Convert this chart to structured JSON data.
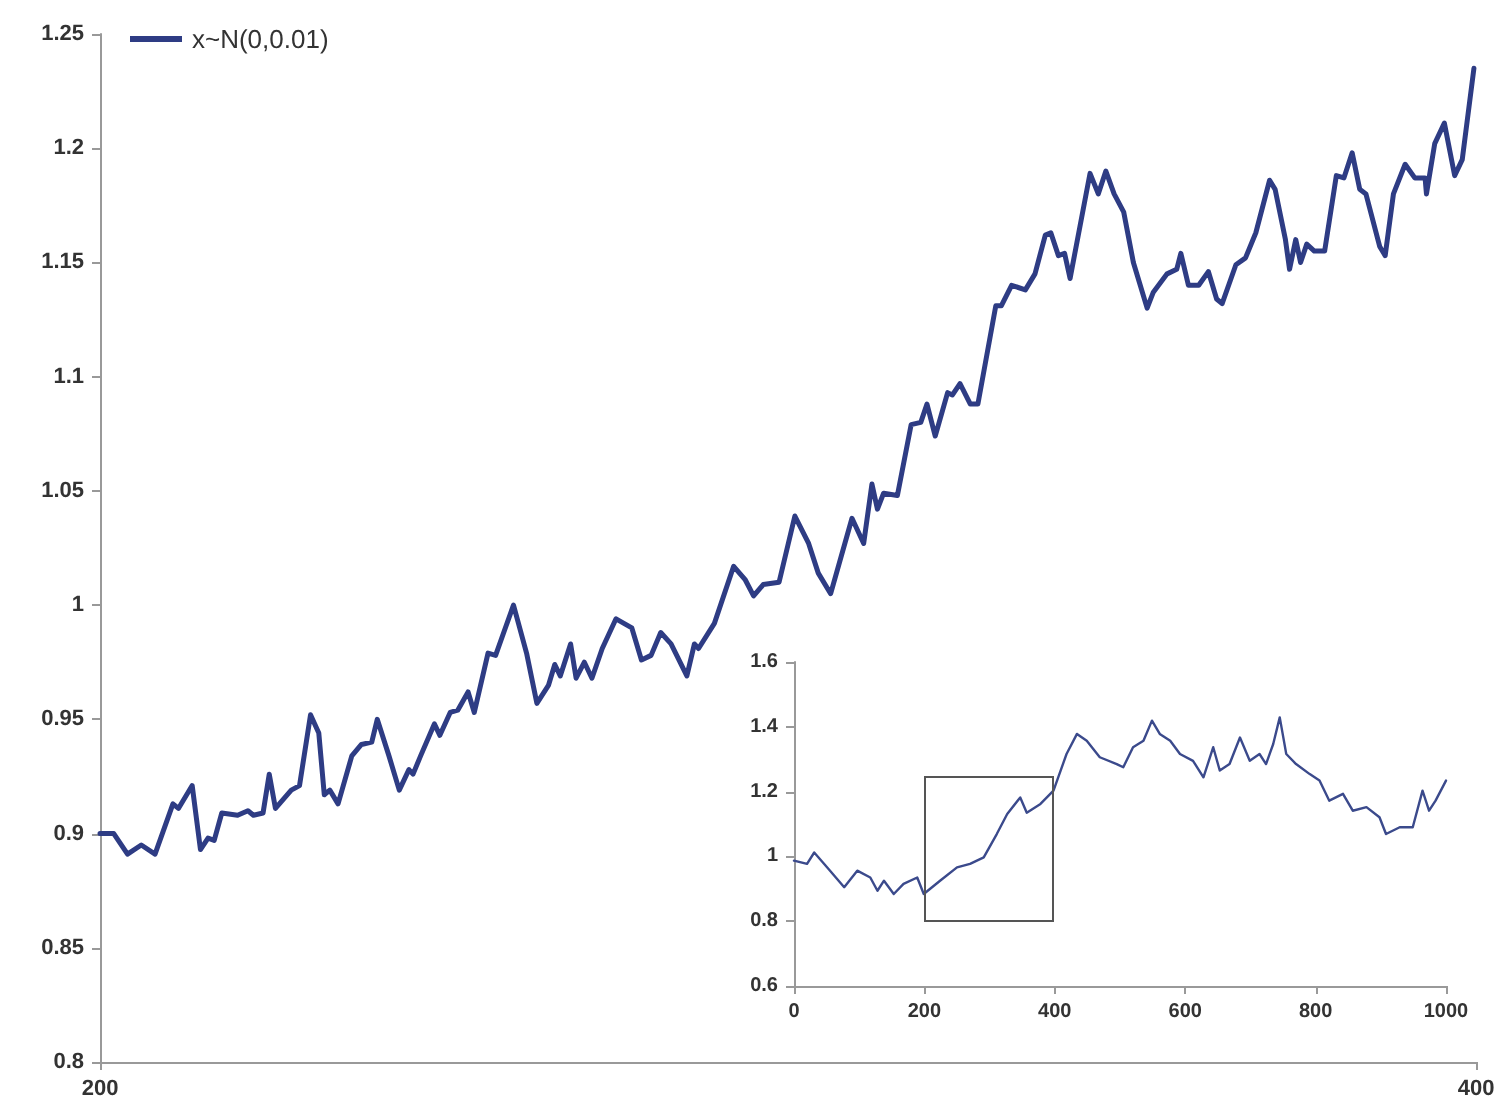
{
  "chart_data": [
    {
      "type": "line",
      "legend": "top left",
      "xlim": [
        200,
        400
      ],
      "xticks": [
        200,
        400
      ],
      "ylim": [
        0.8,
        1.25
      ],
      "yticks": [
        0.8,
        0.85,
        0.9,
        0.95,
        1,
        1.05,
        1.1,
        1.15,
        1.2,
        1.25
      ],
      "series": [
        {
          "name": "x~N(0,0.01)",
          "color": "#2e3c84",
          "x": [
            200,
            202,
            204,
            206,
            208,
            210.6,
            211.4,
            213.4,
            214.6,
            215.7,
            216.6,
            217.7,
            220,
            221.5,
            222.3,
            223.7,
            224.6,
            225.5,
            227.8,
            229,
            230.6,
            231.8,
            232.6,
            233.4,
            234.6,
            236.6,
            238,
            239.5,
            240.3,
            242,
            243.5,
            244.9,
            245.5,
            246.6,
            248.6,
            249.4,
            250.9,
            252,
            253.5,
            254.4,
            256.4,
            257.5,
            260.1,
            262,
            263.5,
            265.2,
            266.1,
            266.9,
            268.4,
            269.2,
            270.4,
            271.5,
            273,
            275,
            277.3,
            278.7,
            280.1,
            281.5,
            283,
            285.3,
            286.4,
            287,
            289.3,
            292.1,
            293.8,
            295,
            296.4,
            298.7,
            301,
            303,
            304.4,
            306.2,
            309.3,
            311,
            312.2,
            313,
            313.9,
            315.9,
            317.9,
            319.3,
            320.2,
            321.4,
            323.2,
            323.9,
            325,
            326.5,
            327.6,
            330.2,
            331,
            332.5,
            334.5,
            335.9,
            337.4,
            338.2,
            339.3,
            340.2,
            341,
            343.9,
            345.1,
            346.2,
            347.4,
            348.8,
            350.2,
            351.1,
            352.2,
            353.1,
            355.1,
            356.5,
            357.1,
            358.2,
            359.7,
            361.1,
            362.3,
            363.1,
            365.1,
            366.5,
            368,
            370,
            370.8,
            372.3,
            372.9,
            373.8,
            374.5,
            375.4,
            376.5,
            378,
            379.7,
            380.8,
            382,
            383.1,
            384,
            386,
            386.8,
            388,
            389.7,
            391.1,
            392.6,
            392.8,
            394,
            395.4,
            396.9,
            398,
            399.7
          ],
          "values": [
            0.9,
            0.9,
            0.891,
            0.895,
            0.891,
            0.913,
            0.911,
            0.921,
            0.893,
            0.898,
            0.897,
            0.909,
            0.908,
            0.91,
            0.908,
            0.909,
            0.926,
            0.911,
            0.919,
            0.921,
            0.952,
            0.944,
            0.917,
            0.919,
            0.913,
            0.934,
            0.939,
            0.94,
            0.95,
            0.934,
            0.919,
            0.928,
            0.926,
            0.934,
            0.948,
            0.943,
            0.953,
            0.954,
            0.962,
            0.953,
            0.979,
            0.978,
            1.0,
            0.979,
            0.957,
            0.965,
            0.974,
            0.969,
            0.983,
            0.968,
            0.975,
            0.968,
            0.981,
            0.994,
            0.99,
            0.976,
            0.978,
            0.988,
            0.983,
            0.969,
            0.983,
            0.981,
            0.992,
            1.017,
            1.011,
            1.004,
            1.009,
            1.01,
            1.039,
            1.027,
            1.014,
            1.005,
            1.038,
            1.027,
            1.053,
            1.042,
            1.049,
            1.048,
            1.079,
            1.08,
            1.088,
            1.074,
            1.093,
            1.092,
            1.097,
            1.088,
            1.088,
            1.131,
            1.131,
            1.14,
            1.138,
            1.145,
            1.162,
            1.163,
            1.153,
            1.154,
            1.143,
            1.189,
            1.18,
            1.19,
            1.18,
            1.172,
            1.15,
            1.141,
            1.13,
            1.137,
            1.145,
            1.147,
            1.154,
            1.14,
            1.14,
            1.146,
            1.134,
            1.132,
            1.149,
            1.152,
            1.163,
            1.186,
            1.182,
            1.16,
            1.147,
            1.16,
            1.15,
            1.158,
            1.155,
            1.155,
            1.188,
            1.187,
            1.198,
            1.182,
            1.18,
            1.157,
            1.153,
            1.18,
            1.193,
            1.187,
            1.187,
            1.18,
            1.202,
            1.211,
            1.188,
            1.195,
            1.235
          ]
        }
      ]
    },
    {
      "type": "line",
      "xlim": [
        0,
        1000
      ],
      "xticks": [
        0,
        200,
        400,
        600,
        800,
        1000
      ],
      "ylim": [
        0.6,
        1.6
      ],
      "yticks": [
        0.6,
        0.8,
        1,
        1.2,
        1.4,
        1.6
      ],
      "series": [
        {
          "color": "#3b4a8c",
          "x": [
            0,
            20,
            31,
            51,
            77,
            97,
            117,
            128,
            138,
            153,
            168,
            189,
            199,
            224,
            250,
            270,
            291,
            311,
            327,
            347,
            357,
            378,
            398,
            418,
            434,
            449,
            469,
            495,
            505,
            520,
            536,
            549,
            561,
            577,
            592,
            612,
            628,
            643,
            653,
            668,
            684,
            699,
            714,
            724,
            735,
            745,
            755,
            770,
            791,
            806,
            821,
            842,
            857,
            878,
            898,
            908,
            929,
            949,
            964,
            974,
            984,
            1000
          ],
          "values": [
            0.987,
            0.977,
            1.012,
            0.966,
            0.905,
            0.956,
            0.935,
            0.894,
            0.925,
            0.884,
            0.915,
            0.935,
            0.884,
            0.925,
            0.966,
            0.977,
            0.997,
            1.069,
            1.131,
            1.182,
            1.135,
            1.162,
            1.203,
            1.316,
            1.378,
            1.357,
            1.306,
            1.285,
            1.275,
            1.337,
            1.357,
            1.419,
            1.378,
            1.357,
            1.316,
            1.295,
            1.244,
            1.337,
            1.265,
            1.285,
            1.367,
            1.295,
            1.316,
            1.285,
            1.347,
            1.429,
            1.316,
            1.285,
            1.254,
            1.234,
            1.172,
            1.193,
            1.141,
            1.152,
            1.121,
            1.069,
            1.09,
            1.09,
            1.203,
            1.141,
            1.172,
            1.234
          ]
        }
      ]
    }
  ]
}
